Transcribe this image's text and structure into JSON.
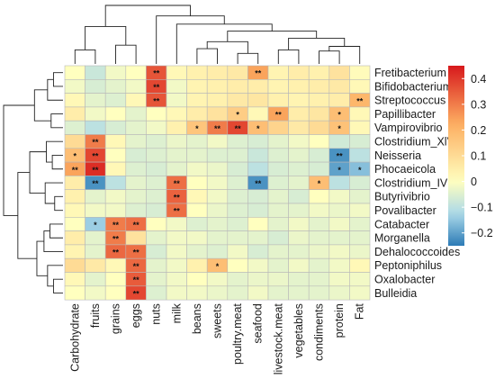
{
  "chart_data": {
    "type": "heatmap",
    "rows": [
      "Fretibacterium",
      "Bifidobacterium",
      "Streptococcus",
      "Papillibacter",
      "Vampirovibrio",
      "Clostridium_XlVa",
      "Neisseria",
      "Phocaeicola",
      "Clostridium_IV",
      "Butyrivibrio",
      "Povalibacter",
      "Catabacter",
      "Morganella",
      "Dehalococcoides",
      "Peptoniphilus",
      "Oxalobacter",
      "Bulleidia"
    ],
    "columns": [
      "Carbohydrate",
      "fruits",
      "grains",
      "eggs",
      "nuts",
      "milk",
      "beans",
      "sweets",
      "poultry.meat",
      "seafood",
      "livestock.meat",
      "vegetables",
      "condiments",
      "protein",
      "Fat"
    ],
    "values": [
      [
        0.0,
        -0.08,
        -0.02,
        0.0,
        0.36,
        0.02,
        0.04,
        0.05,
        0.06,
        0.24,
        0.03,
        0.05,
        0.04,
        0.08,
        0.01
      ],
      [
        -0.02,
        -0.06,
        -0.04,
        -0.02,
        0.38,
        -0.02,
        0.03,
        0.04,
        0.05,
        0.05,
        0.03,
        0.04,
        0.05,
        0.06,
        0.02
      ],
      [
        0.02,
        -0.04,
        -0.05,
        0.02,
        0.36,
        -0.02,
        0.03,
        0.04,
        0.06,
        0.07,
        0.04,
        0.03,
        0.04,
        0.05,
        0.2
      ],
      [
        0.05,
        -0.02,
        0.0,
        -0.04,
        0.0,
        0.02,
        0.05,
        0.08,
        0.14,
        0.02,
        0.24,
        0.05,
        0.07,
        0.18,
        0.02
      ],
      [
        -0.05,
        -0.1,
        -0.06,
        -0.04,
        -0.02,
        0.04,
        0.16,
        0.3,
        0.38,
        0.18,
        0.12,
        0.06,
        0.1,
        0.17,
        0.02
      ],
      [
        0.1,
        0.3,
        0.02,
        -0.04,
        -0.05,
        -0.03,
        -0.04,
        -0.02,
        -0.05,
        -0.06,
        -0.04,
        -0.02,
        0.0,
        -0.07,
        -0.06
      ],
      [
        0.18,
        0.38,
        0.0,
        -0.06,
        -0.05,
        -0.04,
        -0.04,
        -0.05,
        -0.05,
        -0.08,
        -0.05,
        -0.04,
        -0.06,
        -0.22,
        -0.1
      ],
      [
        0.24,
        0.42,
        0.02,
        -0.05,
        -0.06,
        -0.04,
        -0.02,
        -0.03,
        -0.06,
        -0.1,
        -0.06,
        -0.05,
        -0.06,
        -0.2,
        -0.16
      ],
      [
        0.05,
        -0.22,
        -0.1,
        -0.04,
        -0.05,
        0.32,
        0.0,
        -0.02,
        -0.05,
        -0.22,
        -0.05,
        -0.04,
        0.18,
        -0.1,
        -0.06
      ],
      [
        0.04,
        -0.04,
        -0.02,
        -0.04,
        -0.05,
        0.34,
        0.02,
        -0.02,
        -0.05,
        -0.06,
        -0.04,
        -0.06,
        0.0,
        -0.02,
        -0.04
      ],
      [
        0.02,
        -0.02,
        -0.02,
        -0.05,
        -0.06,
        0.32,
        0.0,
        -0.03,
        -0.05,
        -0.06,
        -0.04,
        -0.04,
        -0.02,
        -0.03,
        -0.02
      ],
      [
        0.0,
        -0.14,
        0.3,
        0.32,
        0.0,
        -0.02,
        -0.05,
        -0.04,
        -0.05,
        0.0,
        -0.04,
        -0.02,
        -0.04,
        -0.02,
        -0.04
      ],
      [
        0.05,
        -0.04,
        0.3,
        0.08,
        -0.04,
        -0.02,
        -0.02,
        -0.04,
        -0.04,
        -0.04,
        -0.06,
        -0.03,
        -0.04,
        -0.04,
        -0.04
      ],
      [
        0.03,
        -0.04,
        0.33,
        0.32,
        -0.06,
        -0.02,
        -0.04,
        -0.05,
        -0.02,
        -0.06,
        -0.04,
        -0.04,
        -0.03,
        -0.02,
        -0.03
      ],
      [
        0.1,
        0.06,
        0.02,
        0.33,
        -0.04,
        -0.02,
        0.04,
        0.18,
        0.0,
        -0.02,
        -0.04,
        -0.02,
        -0.04,
        -0.02,
        0.02
      ],
      [
        0.02,
        -0.04,
        0.0,
        0.35,
        -0.04,
        -0.02,
        0.0,
        -0.02,
        -0.04,
        -0.03,
        -0.03,
        -0.04,
        -0.04,
        -0.02,
        -0.02
      ],
      [
        0.0,
        -0.02,
        0.0,
        0.38,
        -0.05,
        -0.02,
        -0.02,
        -0.03,
        -0.04,
        -0.02,
        -0.04,
        -0.04,
        -0.04,
        -0.03,
        -0.02
      ]
    ],
    "significance": [
      [
        "",
        "",
        "",
        "",
        "**",
        "",
        "",
        "",
        "",
        "**",
        "",
        "",
        "",
        "",
        ""
      ],
      [
        "",
        "",
        "",
        "",
        "**",
        "",
        "",
        "",
        "",
        "",
        "",
        "",
        "",
        "",
        ""
      ],
      [
        "",
        "",
        "",
        "",
        "**",
        "",
        "",
        "",
        "",
        "",
        "",
        "",
        "",
        "",
        "**"
      ],
      [
        "",
        "",
        "",
        "",
        "",
        "",
        "",
        "",
        "*",
        "",
        "**",
        "",
        "",
        "*",
        ""
      ],
      [
        "",
        "",
        "",
        "",
        "",
        "",
        "*",
        "**",
        "**",
        "*",
        "",
        "",
        "",
        "*",
        ""
      ],
      [
        "",
        "**",
        "",
        "",
        "",
        "",
        "",
        "",
        "",
        "",
        "",
        "",
        "",
        "",
        ""
      ],
      [
        "*",
        "**",
        "",
        "",
        "",
        "",
        "",
        "",
        "",
        "",
        "",
        "",
        "",
        "**",
        ""
      ],
      [
        "**",
        "**",
        "",
        "",
        "",
        "",
        "",
        "",
        "",
        "",
        "",
        "",
        "",
        "*",
        "*"
      ],
      [
        "",
        "**",
        "",
        "",
        "",
        "**",
        "",
        "",
        "",
        "**",
        "",
        "",
        "*",
        "",
        ""
      ],
      [
        "",
        "",
        "",
        "",
        "",
        "**",
        "",
        "",
        "",
        "",
        "",
        "",
        "",
        "",
        ""
      ],
      [
        "",
        "",
        "",
        "",
        "",
        "**",
        "",
        "",
        "",
        "",
        "",
        "",
        "",
        "",
        ""
      ],
      [
        "",
        "*",
        "**",
        "**",
        "",
        "",
        "",
        "",
        "",
        "",
        "",
        "",
        "",
        "",
        ""
      ],
      [
        "",
        "",
        "**",
        "",
        "",
        "",
        "",
        "",
        "",
        "",
        "",
        "",
        "",
        "",
        ""
      ],
      [
        "",
        "",
        "**",
        "**",
        "",
        "",
        "",
        "",
        "",
        "",
        "",
        "",
        "",
        "",
        ""
      ],
      [
        "",
        "",
        "",
        "**",
        "",
        "",
        "",
        "*",
        "",
        "",
        "",
        "",
        "",
        "",
        ""
      ],
      [
        "",
        "",
        "",
        "**",
        "",
        "",
        "",
        "",
        "",
        "",
        "",
        "",
        "",
        "",
        ""
      ],
      [
        "",
        "",
        "",
        "**",
        "",
        "",
        "",
        "",
        "",
        "",
        "",
        "",
        "",
        "",
        ""
      ]
    ],
    "colorbar": {
      "range": [
        -0.25,
        0.45
      ],
      "ticks": [
        0.4,
        0.3,
        0.2,
        0.1,
        0,
        -0.1,
        -0.2
      ],
      "tick_labels": [
        "0.4",
        "0.3",
        "0.2",
        "0.1",
        "0",
        "−0.1",
        "−0.2"
      ],
      "colors": [
        "#2c7bb6",
        "#abd9e9",
        "#ffffbf",
        "#fdae61",
        "#d7191c"
      ]
    },
    "dendrogram_rows": true,
    "dendrogram_columns": true,
    "legend": "right"
  }
}
